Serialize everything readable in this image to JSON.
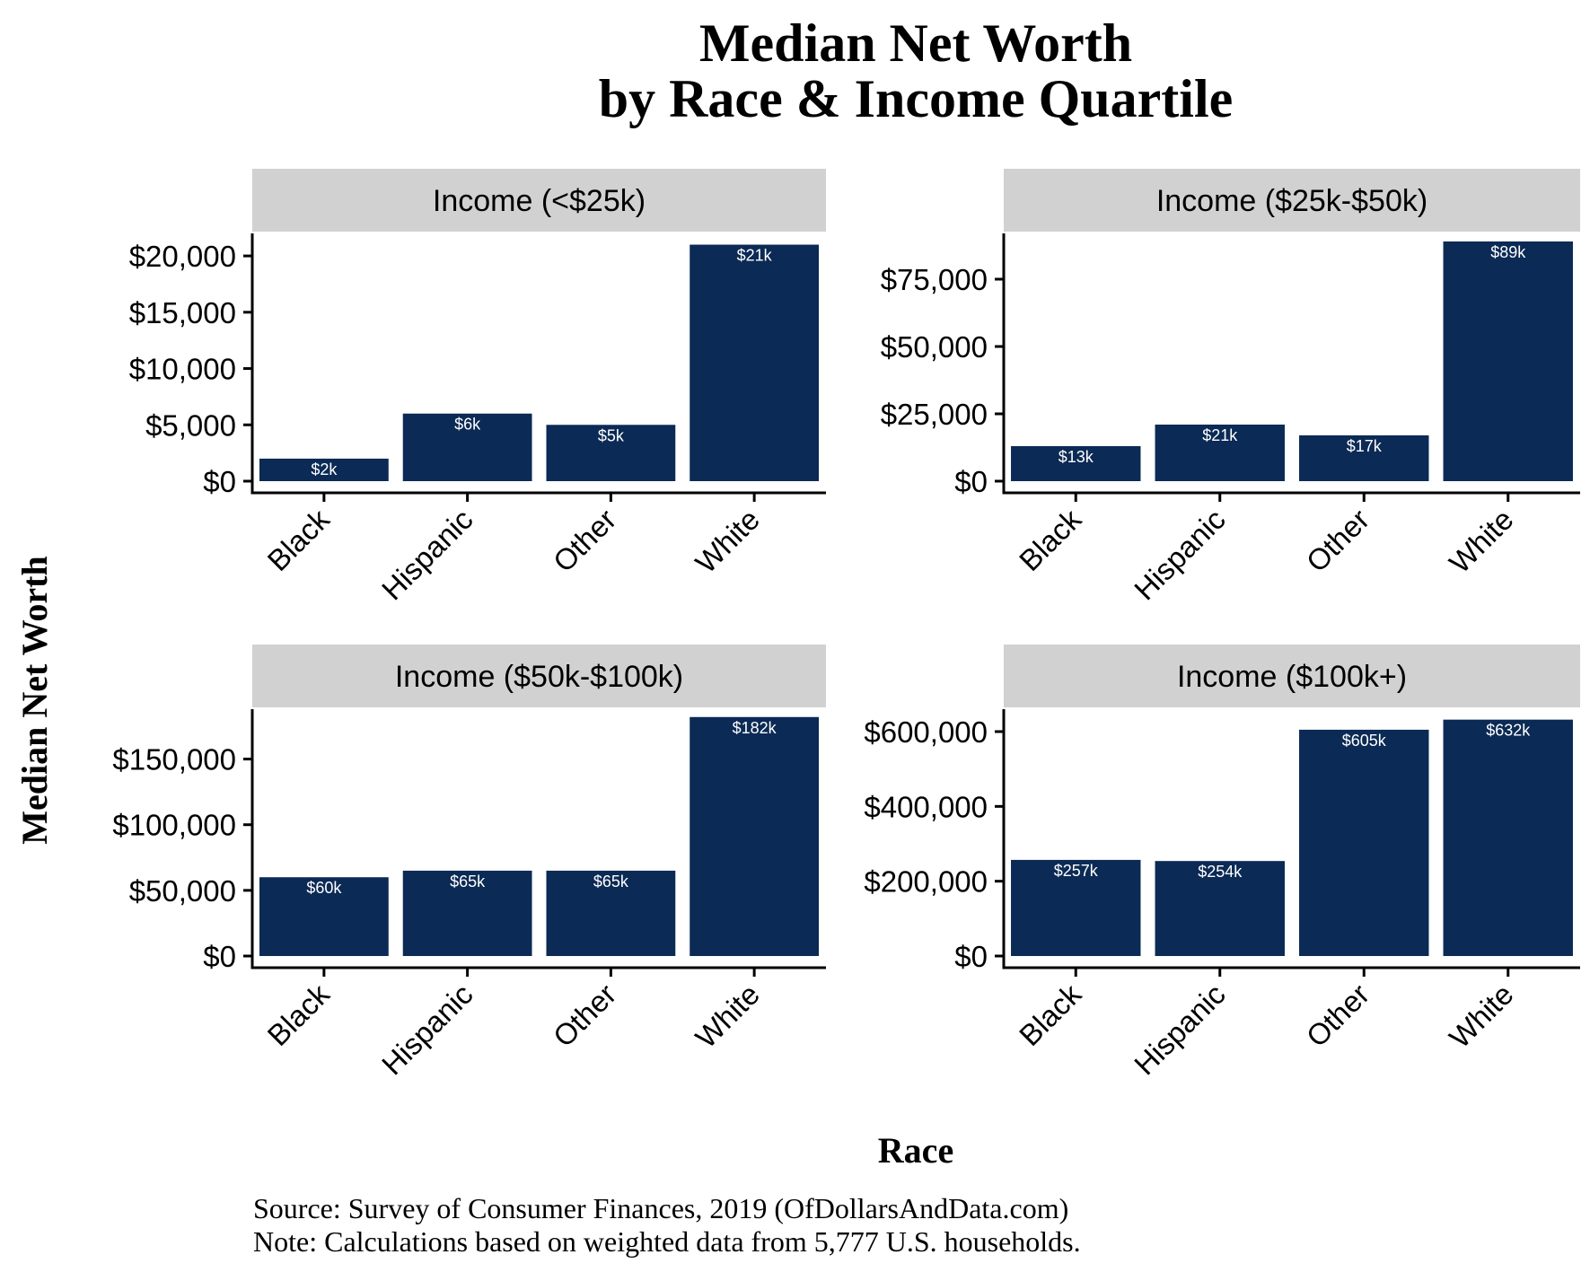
{
  "colors": {
    "bar": "#0b2a55",
    "strip": "#d1d1d1",
    "axis": "#000000",
    "bar_label": "#ffffff",
    "text": "#000000"
  },
  "chart_data": [
    {
      "type": "bar",
      "panel": "Income (<$25k)",
      "categories": [
        "Black",
        "Hispanic",
        "Other",
        "White"
      ],
      "values": [
        2000,
        6000,
        5000,
        21000
      ],
      "data_labels": [
        "$2k",
        "$6k",
        "$5k",
        "$21k"
      ],
      "yticks": [
        0,
        5000,
        10000,
        15000,
        20000
      ],
      "ytick_labels": [
        "$0",
        "$5,000",
        "$10,000",
        "$15,000",
        "$20,000"
      ],
      "ylim": [
        0,
        22000
      ]
    },
    {
      "type": "bar",
      "panel": "Income ($25k-$50k)",
      "categories": [
        "Black",
        "Hispanic",
        "Other",
        "White"
      ],
      "values": [
        13000,
        21000,
        17000,
        89000
      ],
      "data_labels": [
        "$13k",
        "$21k",
        "$17k",
        "$89k"
      ],
      "yticks": [
        0,
        25000,
        50000,
        75000
      ],
      "ytick_labels": [
        "$0",
        "$25,000",
        "$50,000",
        "$75,000"
      ],
      "ylim": [
        0,
        92000
      ]
    },
    {
      "type": "bar",
      "panel": "Income ($50k-$100k)",
      "categories": [
        "Black",
        "Hispanic",
        "Other",
        "White"
      ],
      "values": [
        60000,
        65000,
        65000,
        182000
      ],
      "data_labels": [
        "$60k",
        "$65k",
        "$65k",
        "$182k"
      ],
      "yticks": [
        0,
        50000,
        100000,
        150000
      ],
      "ytick_labels": [
        "$0",
        "$50,000",
        "$100,000",
        "$150,000"
      ],
      "ylim": [
        0,
        188000
      ]
    },
    {
      "type": "bar",
      "panel": "Income ($100k+)",
      "categories": [
        "Black",
        "Hispanic",
        "Other",
        "White"
      ],
      "values": [
        257000,
        254000,
        605000,
        632000
      ],
      "data_labels": [
        "$257k",
        "$254k",
        "$605k",
        "$632k"
      ],
      "yticks": [
        0,
        200000,
        400000,
        600000
      ],
      "ytick_labels": [
        "$0",
        "$200,000",
        "$400,000",
        "$600,000"
      ],
      "ylim": [
        0,
        660000
      ]
    }
  ],
  "figure": {
    "title_line1": "Median Net Worth",
    "title_line2": "by Race & Income Quartile",
    "xlabel": "Race",
    "ylabel": "Median Net Worth",
    "source": "Source:  Survey of Consumer Finances, 2019 (OfDollarsAndData.com)",
    "note": "Note: Calculations based on weighted data from 5,777 U.S. households."
  }
}
